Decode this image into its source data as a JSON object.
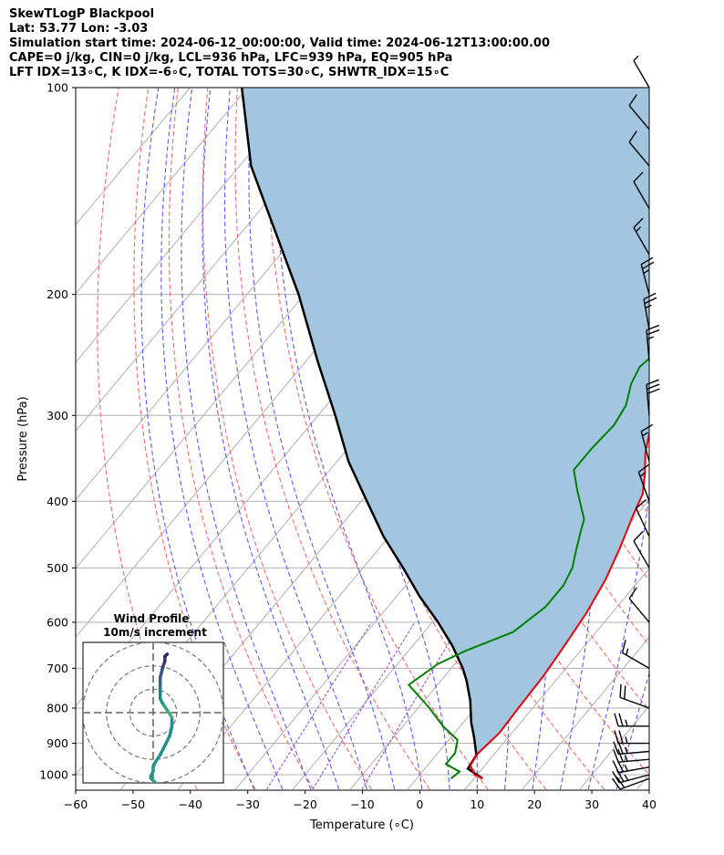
{
  "header": {
    "title": "SkewTLogP Blackpool",
    "location": "Lat: 53.77   Lon: -3.03",
    "times": "Simulation start time: 2024-06-12_00:00:00, Valid time: 2024-06-12T13:00:00.00",
    "indices1": "CAPE=0 j/kg, CIN=0 j/kg, LCL=936 hPa, LFC=939 hPa, EQ=905 hPa",
    "indices2": "LFT IDX=13∘C, K IDX=-6∘C, TOTAL TOTS=30∘C, SHWTR_IDX=15∘C"
  },
  "chart_data": {
    "type": "line",
    "title": "",
    "xlabel": "Temperature (∘C)",
    "ylabel": "Pressure (hPa)",
    "xlim": [
      -60,
      40
    ],
    "ylim": [
      1050,
      100
    ],
    "y_scale": "log",
    "skew": true,
    "grid": true,
    "x_ticks": [
      "−60",
      "−50",
      "−40",
      "−30",
      "−20",
      "−10",
      "0",
      "10",
      "20",
      "30",
      "40"
    ],
    "y_ticks": [
      "1000",
      "900",
      "800",
      "700",
      "600",
      "500",
      "400",
      "300",
      "200",
      "100"
    ],
    "colors": {
      "temperature": "#e8000b",
      "dewpoint": "#008000",
      "parcel": "#000000",
      "fill": "#a2c6e0",
      "dry_adiabats": "#ef6a6a",
      "moist_adiabats": "#5a5af0",
      "mixing_ratio": "#9b4fc9",
      "isotherms": "#b0b0b0"
    },
    "series": [
      {
        "key": "temperature",
        "points": [
          [
            11.5,
            1013
          ],
          [
            9.5,
            1000
          ],
          [
            7.5,
            970
          ],
          [
            7.0,
            935
          ],
          [
            7.8,
            870
          ],
          [
            7.5,
            800
          ],
          [
            7.2,
            720
          ],
          [
            6.8,
            680
          ],
          [
            6.2,
            630
          ],
          [
            5.5,
            580
          ],
          [
            4.0,
            520
          ],
          [
            2.0,
            470
          ],
          [
            -0.5,
            420
          ],
          [
            -2.0,
            390
          ],
          [
            -4.5,
            365
          ],
          [
            -7.5,
            340
          ],
          [
            -10.0,
            315
          ],
          [
            -11.5,
            300
          ],
          [
            -13.5,
            275
          ],
          [
            -15.0,
            255
          ],
          [
            -15.5,
            240
          ],
          [
            -15.5,
            230
          ],
          [
            -15.5,
            218
          ],
          [
            -16.0,
            205
          ],
          [
            -17.0,
            190
          ],
          [
            -15.0,
            175
          ],
          [
            -15.0,
            165
          ],
          [
            -15.5,
            155
          ],
          [
            -16.0,
            145
          ],
          [
            -16.0,
            135
          ],
          [
            -18.5,
            120
          ],
          [
            -20.0,
            112
          ],
          [
            -21.0,
            100
          ]
        ]
      },
      {
        "key": "dewpoint",
        "points": [
          [
            6.0,
            1013
          ],
          [
            6.5,
            990
          ],
          [
            3.0,
            965
          ],
          [
            3.0,
            930
          ],
          [
            1.5,
            890
          ],
          [
            -3.0,
            850
          ],
          [
            -8.0,
            800
          ],
          [
            -15.0,
            740
          ],
          [
            -13.0,
            690
          ],
          [
            -10.0,
            660
          ],
          [
            -4.5,
            620
          ],
          [
            -2.5,
            570
          ],
          [
            -2.5,
            530
          ],
          [
            -3.5,
            500
          ],
          [
            -5.5,
            470
          ],
          [
            -7.5,
            440
          ],
          [
            -8.5,
            425
          ],
          [
            -14.0,
            385
          ],
          [
            -17.5,
            360
          ],
          [
            -17.5,
            335
          ],
          [
            -17.0,
            310
          ],
          [
            -17.8,
            290
          ],
          [
            -20.0,
            270
          ],
          [
            -21.0,
            255
          ],
          [
            -20.0,
            240
          ],
          [
            -20.5,
            225
          ],
          [
            -21.5,
            210
          ],
          [
            -21.0,
            197
          ],
          [
            -23.0,
            180
          ],
          [
            -23.0,
            168
          ],
          [
            -25.0,
            160
          ],
          [
            -30.0,
            155
          ],
          [
            -29.0,
            145
          ],
          [
            -28.0,
            135
          ],
          [
            -28.0,
            126
          ],
          [
            -28.0,
            118
          ],
          [
            -27.0,
            110
          ],
          [
            -26.0,
            100
          ]
        ]
      },
      {
        "key": "parcel",
        "points": [
          [
            11.5,
            1013
          ],
          [
            7.5,
            980
          ],
          [
            7.0,
            936
          ],
          [
            3.9,
            880
          ],
          [
            1.4,
            840
          ],
          [
            -2.0,
            780
          ],
          [
            -5.5,
            730
          ],
          [
            -8.0,
            700
          ],
          [
            -13.0,
            650
          ],
          [
            -19.0,
            600
          ],
          [
            -26.0,
            550
          ],
          [
            -33.0,
            500
          ],
          [
            -41.0,
            450
          ],
          [
            -49.0,
            400
          ],
          [
            -58.0,
            350
          ],
          [
            -67.0,
            300
          ],
          [
            -78.0,
            250
          ],
          [
            -91.0,
            200
          ],
          [
            -105.0,
            160
          ],
          [
            -118.0,
            130
          ],
          [
            -131.0,
            100
          ]
        ]
      }
    ],
    "isotherms_c": [
      -140,
      -130,
      -120,
      -110,
      -100,
      -90,
      -80,
      -70,
      -60,
      -50,
      -40,
      -30,
      -20,
      -10,
      0,
      10,
      20,
      30,
      40
    ],
    "dry_adiabats_c": [
      -40,
      -30,
      -20,
      -10,
      0,
      10,
      20,
      30,
      40,
      50,
      60,
      70,
      80,
      90,
      100,
      110,
      120
    ],
    "moist_adiabats_c": [
      -30,
      -25,
      -20,
      -15,
      -10,
      -5,
      0,
      5,
      10,
      15,
      20,
      25,
      30,
      35
    ],
    "mixing_ratios_gkg": [
      0.5,
      1,
      2
    ],
    "wind_barbs": [
      {
        "p": 1013,
        "speed_kt": 20,
        "dir_deg": 250
      },
      {
        "p": 1000,
        "speed_kt": 25,
        "dir_deg": 255
      },
      {
        "p": 975,
        "speed_kt": 25,
        "dir_deg": 260
      },
      {
        "p": 950,
        "speed_kt": 25,
        "dir_deg": 265
      },
      {
        "p": 925,
        "speed_kt": 25,
        "dir_deg": 265
      },
      {
        "p": 900,
        "speed_kt": 25,
        "dir_deg": 270
      },
      {
        "p": 850,
        "speed_kt": 25,
        "dir_deg": 270
      },
      {
        "p": 800,
        "speed_kt": 20,
        "dir_deg": 290
      },
      {
        "p": 700,
        "speed_kt": 15,
        "dir_deg": 300
      },
      {
        "p": 600,
        "speed_kt": 10,
        "dir_deg": 320
      },
      {
        "p": 500,
        "speed_kt": 10,
        "dir_deg": 330
      },
      {
        "p": 450,
        "speed_kt": 10,
        "dir_deg": 335
      },
      {
        "p": 400,
        "speed_kt": 15,
        "dir_deg": 340
      },
      {
        "p": 350,
        "speed_kt": 15,
        "dir_deg": 345
      },
      {
        "p": 300,
        "speed_kt": 30,
        "dir_deg": 355
      },
      {
        "p": 250,
        "speed_kt": 25,
        "dir_deg": 355
      },
      {
        "p": 225,
        "speed_kt": 25,
        "dir_deg": 350
      },
      {
        "p": 200,
        "speed_kt": 25,
        "dir_deg": 345
      },
      {
        "p": 175,
        "speed_kt": 15,
        "dir_deg": 330
      },
      {
        "p": 150,
        "speed_kt": 10,
        "dir_deg": 330
      },
      {
        "p": 130,
        "speed_kt": 10,
        "dir_deg": 320
      },
      {
        "p": 115,
        "speed_kt": 10,
        "dir_deg": 320
      },
      {
        "p": 100,
        "speed_kt": 5,
        "dir_deg": 330
      }
    ]
  },
  "hodograph": {
    "title": "Wind Profile",
    "subtitle": "10m/s increment",
    "rings_ms": [
      10,
      20,
      30
    ],
    "range_ms": 30,
    "points_uv": [
      [
        1,
        -30
      ],
      [
        0,
        -29
      ],
      [
        -1,
        -28
      ],
      [
        -1,
        -27
      ],
      [
        0,
        -25
      ],
      [
        0,
        -23
      ],
      [
        1,
        -21
      ],
      [
        3,
        -18
      ],
      [
        5,
        -14
      ],
      [
        7,
        -10
      ],
      [
        8,
        -6
      ],
      [
        8,
        -2
      ],
      [
        6,
        1
      ],
      [
        4,
        4
      ],
      [
        3,
        6
      ],
      [
        3,
        9
      ],
      [
        3,
        12
      ],
      [
        3,
        15
      ],
      [
        4,
        19
      ],
      [
        5,
        22
      ],
      [
        5,
        24
      ],
      [
        6,
        25
      ]
    ]
  }
}
